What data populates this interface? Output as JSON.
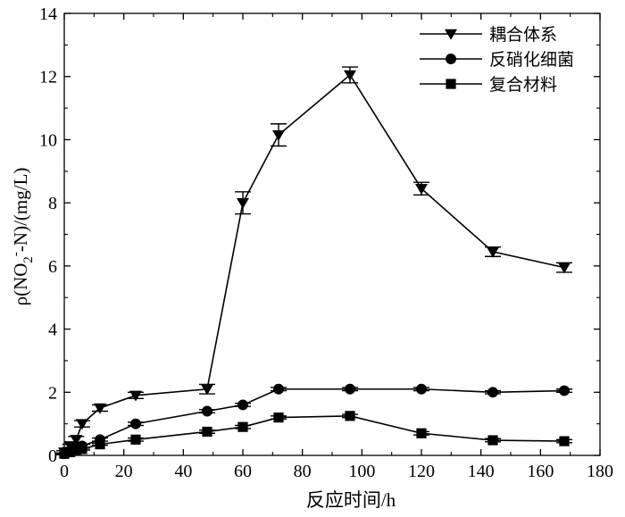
{
  "chart_data": {
    "type": "line",
    "xlabel": "反应时间/h",
    "ylabel": "ρ(NO2⁻-N)/(mg/L)",
    "ylabel_parts": {
      "prefix": "ρ(NO",
      "sub": "2",
      "sup": "-",
      "suffix": "-N)/(mg/L)"
    },
    "xlim": [
      0,
      180
    ],
    "ylim": [
      0,
      14
    ],
    "xticks": [
      0,
      20,
      40,
      60,
      80,
      100,
      120,
      140,
      160,
      180
    ],
    "yticks": [
      0,
      2,
      4,
      6,
      8,
      10,
      12,
      14
    ],
    "grid": false,
    "legend_position": "top-right",
    "series": [
      {
        "name": "耦合体系",
        "marker": "triangle-down",
        "x": [
          0,
          2,
          4,
          6,
          12,
          24,
          48,
          60,
          72,
          96,
          120,
          144,
          168
        ],
        "y": [
          0.1,
          0.3,
          0.5,
          1.0,
          1.5,
          1.9,
          2.1,
          8.0,
          10.15,
          12.05,
          8.45,
          6.45,
          5.95
        ],
        "err": [
          0.05,
          0.05,
          0.1,
          0.1,
          0.1,
          0.1,
          0.15,
          0.35,
          0.35,
          0.25,
          0.2,
          0.15,
          0.15
        ]
      },
      {
        "name": "反硝化细菌",
        "marker": "circle",
        "x": [
          0,
          2,
          4,
          6,
          12,
          24,
          48,
          60,
          72,
          96,
          120,
          144,
          168
        ],
        "y": [
          0.05,
          0.15,
          0.25,
          0.3,
          0.5,
          1.0,
          1.4,
          1.6,
          2.1,
          2.1,
          2.1,
          2.0,
          2.05
        ],
        "err": [
          0.03,
          0.03,
          0.05,
          0.05,
          0.05,
          0.05,
          0.05,
          0.05,
          0.05,
          0.05,
          0.05,
          0.05,
          0.05
        ]
      },
      {
        "name": "复合材料",
        "marker": "square",
        "x": [
          0,
          2,
          4,
          6,
          12,
          24,
          48,
          60,
          72,
          96,
          120,
          144,
          168
        ],
        "y": [
          0.05,
          0.1,
          0.15,
          0.2,
          0.35,
          0.5,
          0.75,
          0.9,
          1.2,
          1.25,
          0.7,
          0.48,
          0.45
        ],
        "err": [
          0.03,
          0.03,
          0.03,
          0.03,
          0.03,
          0.05,
          0.05,
          0.05,
          0.05,
          0.05,
          0.05,
          0.05,
          0.05
        ]
      }
    ]
  }
}
